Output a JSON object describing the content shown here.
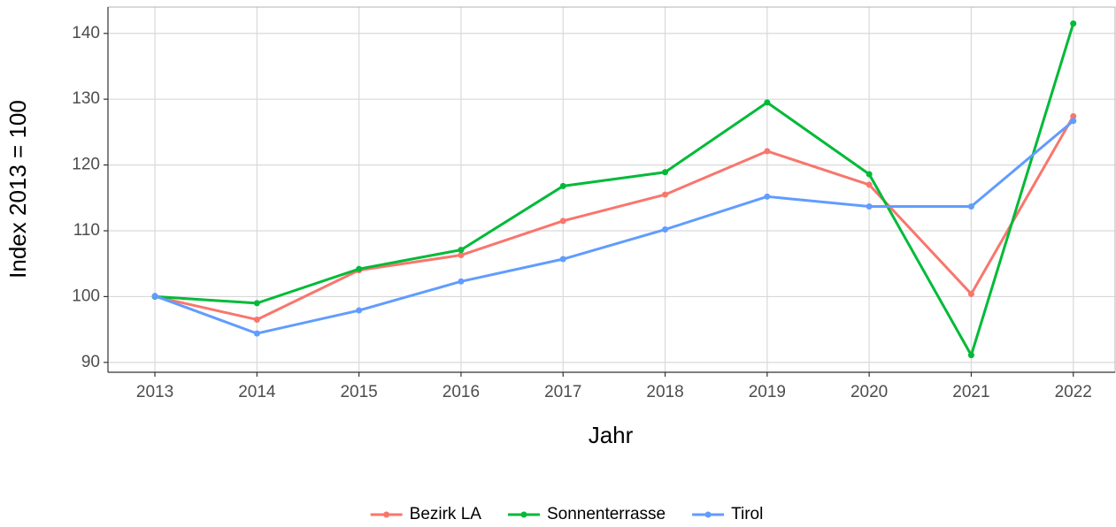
{
  "chart_data": {
    "type": "line",
    "x": [
      2013,
      2014,
      2015,
      2016,
      2017,
      2018,
      2019,
      2020,
      2021,
      2022
    ],
    "series": [
      {
        "name": "Bezirk LA",
        "color": "#F8766D",
        "values": [
          100,
          96.5,
          104,
          106.3,
          111.5,
          115.5,
          122.1,
          117,
          100.4,
          127.4
        ]
      },
      {
        "name": "Sonnenterrasse",
        "color": "#00BA38",
        "values": [
          100,
          99,
          104.2,
          107.1,
          116.8,
          118.9,
          129.5,
          118.6,
          91.1,
          141.5
        ]
      },
      {
        "name": "Tirol",
        "color": "#619CFF",
        "values": [
          100.1,
          94.4,
          97.9,
          102.3,
          105.7,
          110.2,
          115.2,
          113.7,
          113.7,
          126.7
        ]
      }
    ],
    "xlabel": "Jahr",
    "ylabel": "Index  2013  = 100",
    "xlim": [
      2012.54,
      2022.41
    ],
    "xticks": [
      2013,
      2014,
      2015,
      2016,
      2017,
      2018,
      2019,
      2020,
      2021,
      2022
    ],
    "ylim": [
      88.5,
      144
    ],
    "yticks": [
      90,
      100,
      110,
      120,
      130,
      140
    ],
    "grid": true,
    "legend": "bottom"
  }
}
